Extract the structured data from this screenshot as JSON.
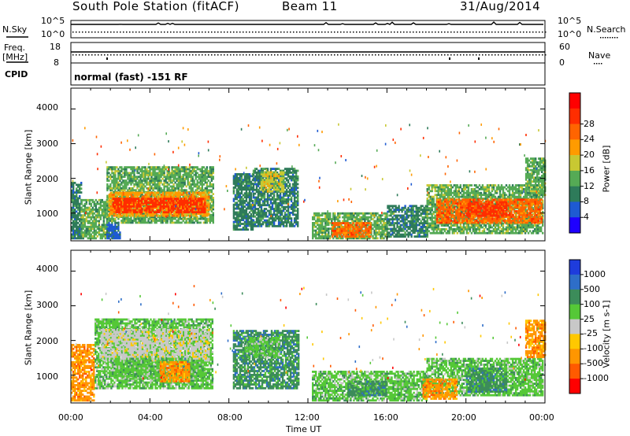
{
  "header": {
    "station": "South Pole Station (fitACF)",
    "beam": "Beam 11",
    "date": "31/Aug/2014"
  },
  "top_panels": {
    "nsky_label": "N.Sky",
    "nsky_ticks": [
      "10^5",
      "10^0"
    ],
    "nsearch_label": "N.Search",
    "nsearch_ticks": [
      "10^5",
      "10^0"
    ],
    "freq_label_1": "Freq.",
    "freq_label_2": "[MHz]",
    "freq_ticks": [
      "18",
      "8"
    ],
    "nave_label": "Nave",
    "nave_ticks": [
      "60",
      "0"
    ],
    "cpid_label": "CPID",
    "cpid_text": "normal (fast) -151 RF"
  },
  "chart_data": [
    {
      "type": "heatmap",
      "name": "power",
      "ylabel": "Slant Range [km]",
      "yticks": [
        "1000",
        "2000",
        "3000",
        "4000"
      ],
      "ylim": [
        200,
        4600
      ],
      "xlim": [
        0,
        24
      ],
      "colorbar_label": "Power [dB]",
      "colorbar_ticks": [
        "4",
        "8",
        "12",
        "16",
        "20",
        "24",
        "28"
      ],
      "colorbar_colors": [
        "#1e00ff",
        "#1e5ad2",
        "#2e7b5a",
        "#55aa55",
        "#c8c832",
        "#ff9b00",
        "#ff6400",
        "#ff2d00",
        "#ff0000"
      ],
      "blocks": [
        {
          "t0": 0.0,
          "t1": 0.5,
          "r0": 250,
          "r1": 1900,
          "value": 8
        },
        {
          "t0": 0.5,
          "t1": 1.8,
          "r0": 250,
          "r1": 1400,
          "value": 12
        },
        {
          "t0": 1.8,
          "t1": 2.5,
          "r0": 250,
          "r1": 700,
          "value": 4
        },
        {
          "t0": 1.8,
          "t1": 7.2,
          "r0": 700,
          "r1": 2300,
          "value": 12
        },
        {
          "t0": 1.9,
          "t1": 7.0,
          "r0": 900,
          "r1": 1600,
          "value": 20
        },
        {
          "t0": 2.1,
          "t1": 6.8,
          "r0": 1000,
          "r1": 1400,
          "value": 28
        },
        {
          "t0": 8.2,
          "t1": 9.2,
          "r0": 500,
          "r1": 2100,
          "value": 8
        },
        {
          "t0": 9.2,
          "t1": 11.5,
          "r0": 600,
          "r1": 2300,
          "value": 8
        },
        {
          "t0": 9.6,
          "t1": 10.8,
          "r0": 1600,
          "r1": 2200,
          "value": 16
        },
        {
          "t0": 12.2,
          "t1": 16.0,
          "r0": 250,
          "r1": 1000,
          "value": 12
        },
        {
          "t0": 13.2,
          "t1": 15.2,
          "r0": 300,
          "r1": 700,
          "value": 24
        },
        {
          "t0": 16.0,
          "t1": 18.0,
          "r0": 300,
          "r1": 1200,
          "value": 8
        },
        {
          "t0": 18.0,
          "t1": 23.9,
          "r0": 400,
          "r1": 1800,
          "value": 12
        },
        {
          "t0": 18.5,
          "t1": 23.8,
          "r0": 700,
          "r1": 1400,
          "value": 24
        },
        {
          "t0": 20.0,
          "t1": 22.0,
          "r0": 900,
          "r1": 1300,
          "value": 28
        },
        {
          "t0": 23.0,
          "t1": 24.0,
          "r0": 1500,
          "r1": 2600,
          "value": 12
        }
      ]
    },
    {
      "type": "heatmap",
      "name": "velocity",
      "ylabel": "Slant Range [km]",
      "yticks": [
        "1000",
        "2000",
        "3000",
        "4000"
      ],
      "ylim": [
        200,
        4600
      ],
      "xlim": [
        0,
        24
      ],
      "xticks": [
        "00:00",
        "04:00",
        "08:00",
        "12:00",
        "16:00",
        "20:00",
        "00:00"
      ],
      "xlabel": "Time UT",
      "colorbar_label": "Velocity [m s-1]",
      "colorbar_ticks": [
        "1000",
        "500",
        "100",
        "25",
        "-25",
        "-100",
        "-500",
        "-1000"
      ],
      "colorbar_colors": [
        "#1e3cdc",
        "#2e6ec8",
        "#3c8c5a",
        "#55c837",
        "#c8c8c8",
        "#ffc800",
        "#ff9600",
        "#ff5a00",
        "#ff0000"
      ],
      "blocks": [
        {
          "t0": 0.0,
          "t1": 1.2,
          "r0": 250,
          "r1": 1900,
          "value": -100
        },
        {
          "t0": 1.2,
          "t1": 7.2,
          "r0": 600,
          "r1": 2600,
          "value": 100
        },
        {
          "t0": 1.5,
          "t1": 7.0,
          "r0": 1400,
          "r1": 2300,
          "value": 25
        },
        {
          "t0": 2.0,
          "t1": 6.8,
          "r0": 900,
          "r1": 1500,
          "value": 100
        },
        {
          "t0": 4.5,
          "t1": 6.0,
          "r0": 800,
          "r1": 1400,
          "value": -100
        },
        {
          "t0": 8.2,
          "t1": 11.5,
          "r0": 600,
          "r1": 2300,
          "value": 500
        },
        {
          "t0": 8.8,
          "t1": 10.5,
          "r0": 1500,
          "r1": 2100,
          "value": 100
        },
        {
          "t0": 12.2,
          "t1": 18.0,
          "r0": 250,
          "r1": 1100,
          "value": 100
        },
        {
          "t0": 14.0,
          "t1": 16.0,
          "r0": 400,
          "r1": 800,
          "value": 500
        },
        {
          "t0": 18.0,
          "t1": 23.9,
          "r0": 400,
          "r1": 1500,
          "value": 100
        },
        {
          "t0": 20.0,
          "t1": 22.0,
          "r0": 500,
          "r1": 1200,
          "value": 500
        },
        {
          "t0": 23.0,
          "t1": 24.0,
          "r0": 1500,
          "r1": 2600,
          "value": -100
        },
        {
          "t0": 17.8,
          "t1": 19.5,
          "r0": 300,
          "r1": 900,
          "value": -100
        }
      ]
    }
  ]
}
